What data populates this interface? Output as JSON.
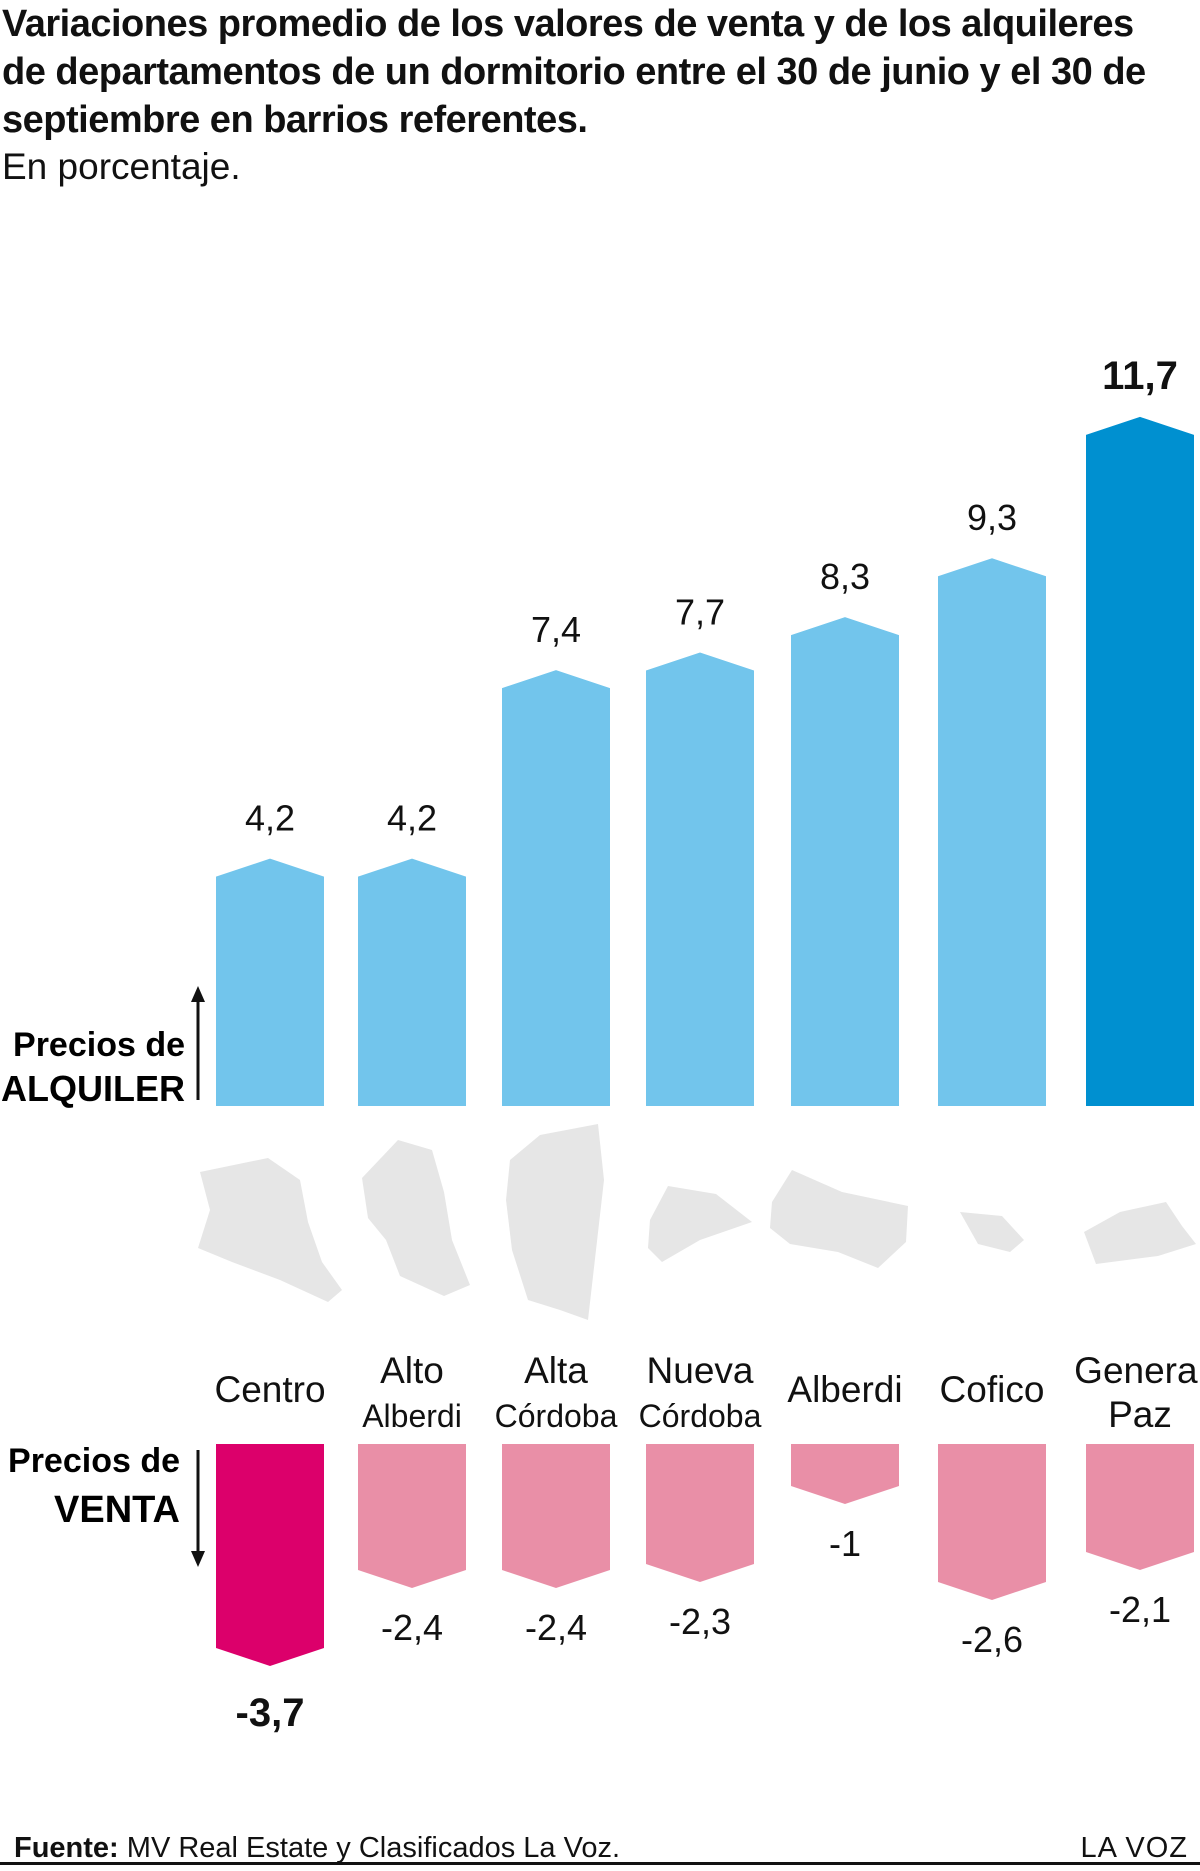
{
  "title": "Variaciones promedio de los valores de venta y de los alquileres de departamentos de un dormitorio entre el 30 de junio y el 30 de septiembre en barrios referentes.",
  "subtitle": "En porcentaje.",
  "labels": {
    "alquiler_line1": "Precios de",
    "alquiler_line2": "ALQUILER",
    "venta_line1": "Precios de",
    "venta_line2": "VENTA"
  },
  "footer": {
    "source_label": "Fuente:",
    "source_text": "MV Real Estate y Clasificados La Voz.",
    "brand": "LA VOZ"
  },
  "colors": {
    "rent": "#72c5ec",
    "rent_highlight": "#0090d0",
    "sale": "#e98fa7",
    "sale_highlight": "#dc006b",
    "map": "#e6e6e6"
  },
  "chart_data": {
    "type": "bar",
    "categories": [
      [
        "Centro"
      ],
      [
        "Alto",
        "Alberdi"
      ],
      [
        "Alta",
        "Córdoba"
      ],
      [
        "Nueva",
        "Córdoba"
      ],
      [
        "Alberdi"
      ],
      [
        "Cofico"
      ],
      [
        "General",
        "Paz"
      ]
    ],
    "series": [
      {
        "name": "Precios de ALQUILER",
        "values": [
          4.2,
          4.2,
          7.4,
          7.7,
          8.3,
          9.3,
          11.7
        ],
        "labels": [
          "4,2",
          "4,2",
          "7,4",
          "7,7",
          "8,3",
          "9,3",
          "11,7"
        ]
      },
      {
        "name": "Precios de VENTA",
        "values": [
          -3.7,
          -2.4,
          -2.4,
          -2.3,
          -1,
          -2.6,
          -2.1
        ],
        "labels": [
          "-3,7",
          "-2,4",
          "-2,4",
          "-2,3",
          "-1",
          "-2,6",
          "-2,1"
        ]
      }
    ],
    "highlight": {
      "rent_index": 6,
      "sale_index": 0
    },
    "unit": "%"
  }
}
